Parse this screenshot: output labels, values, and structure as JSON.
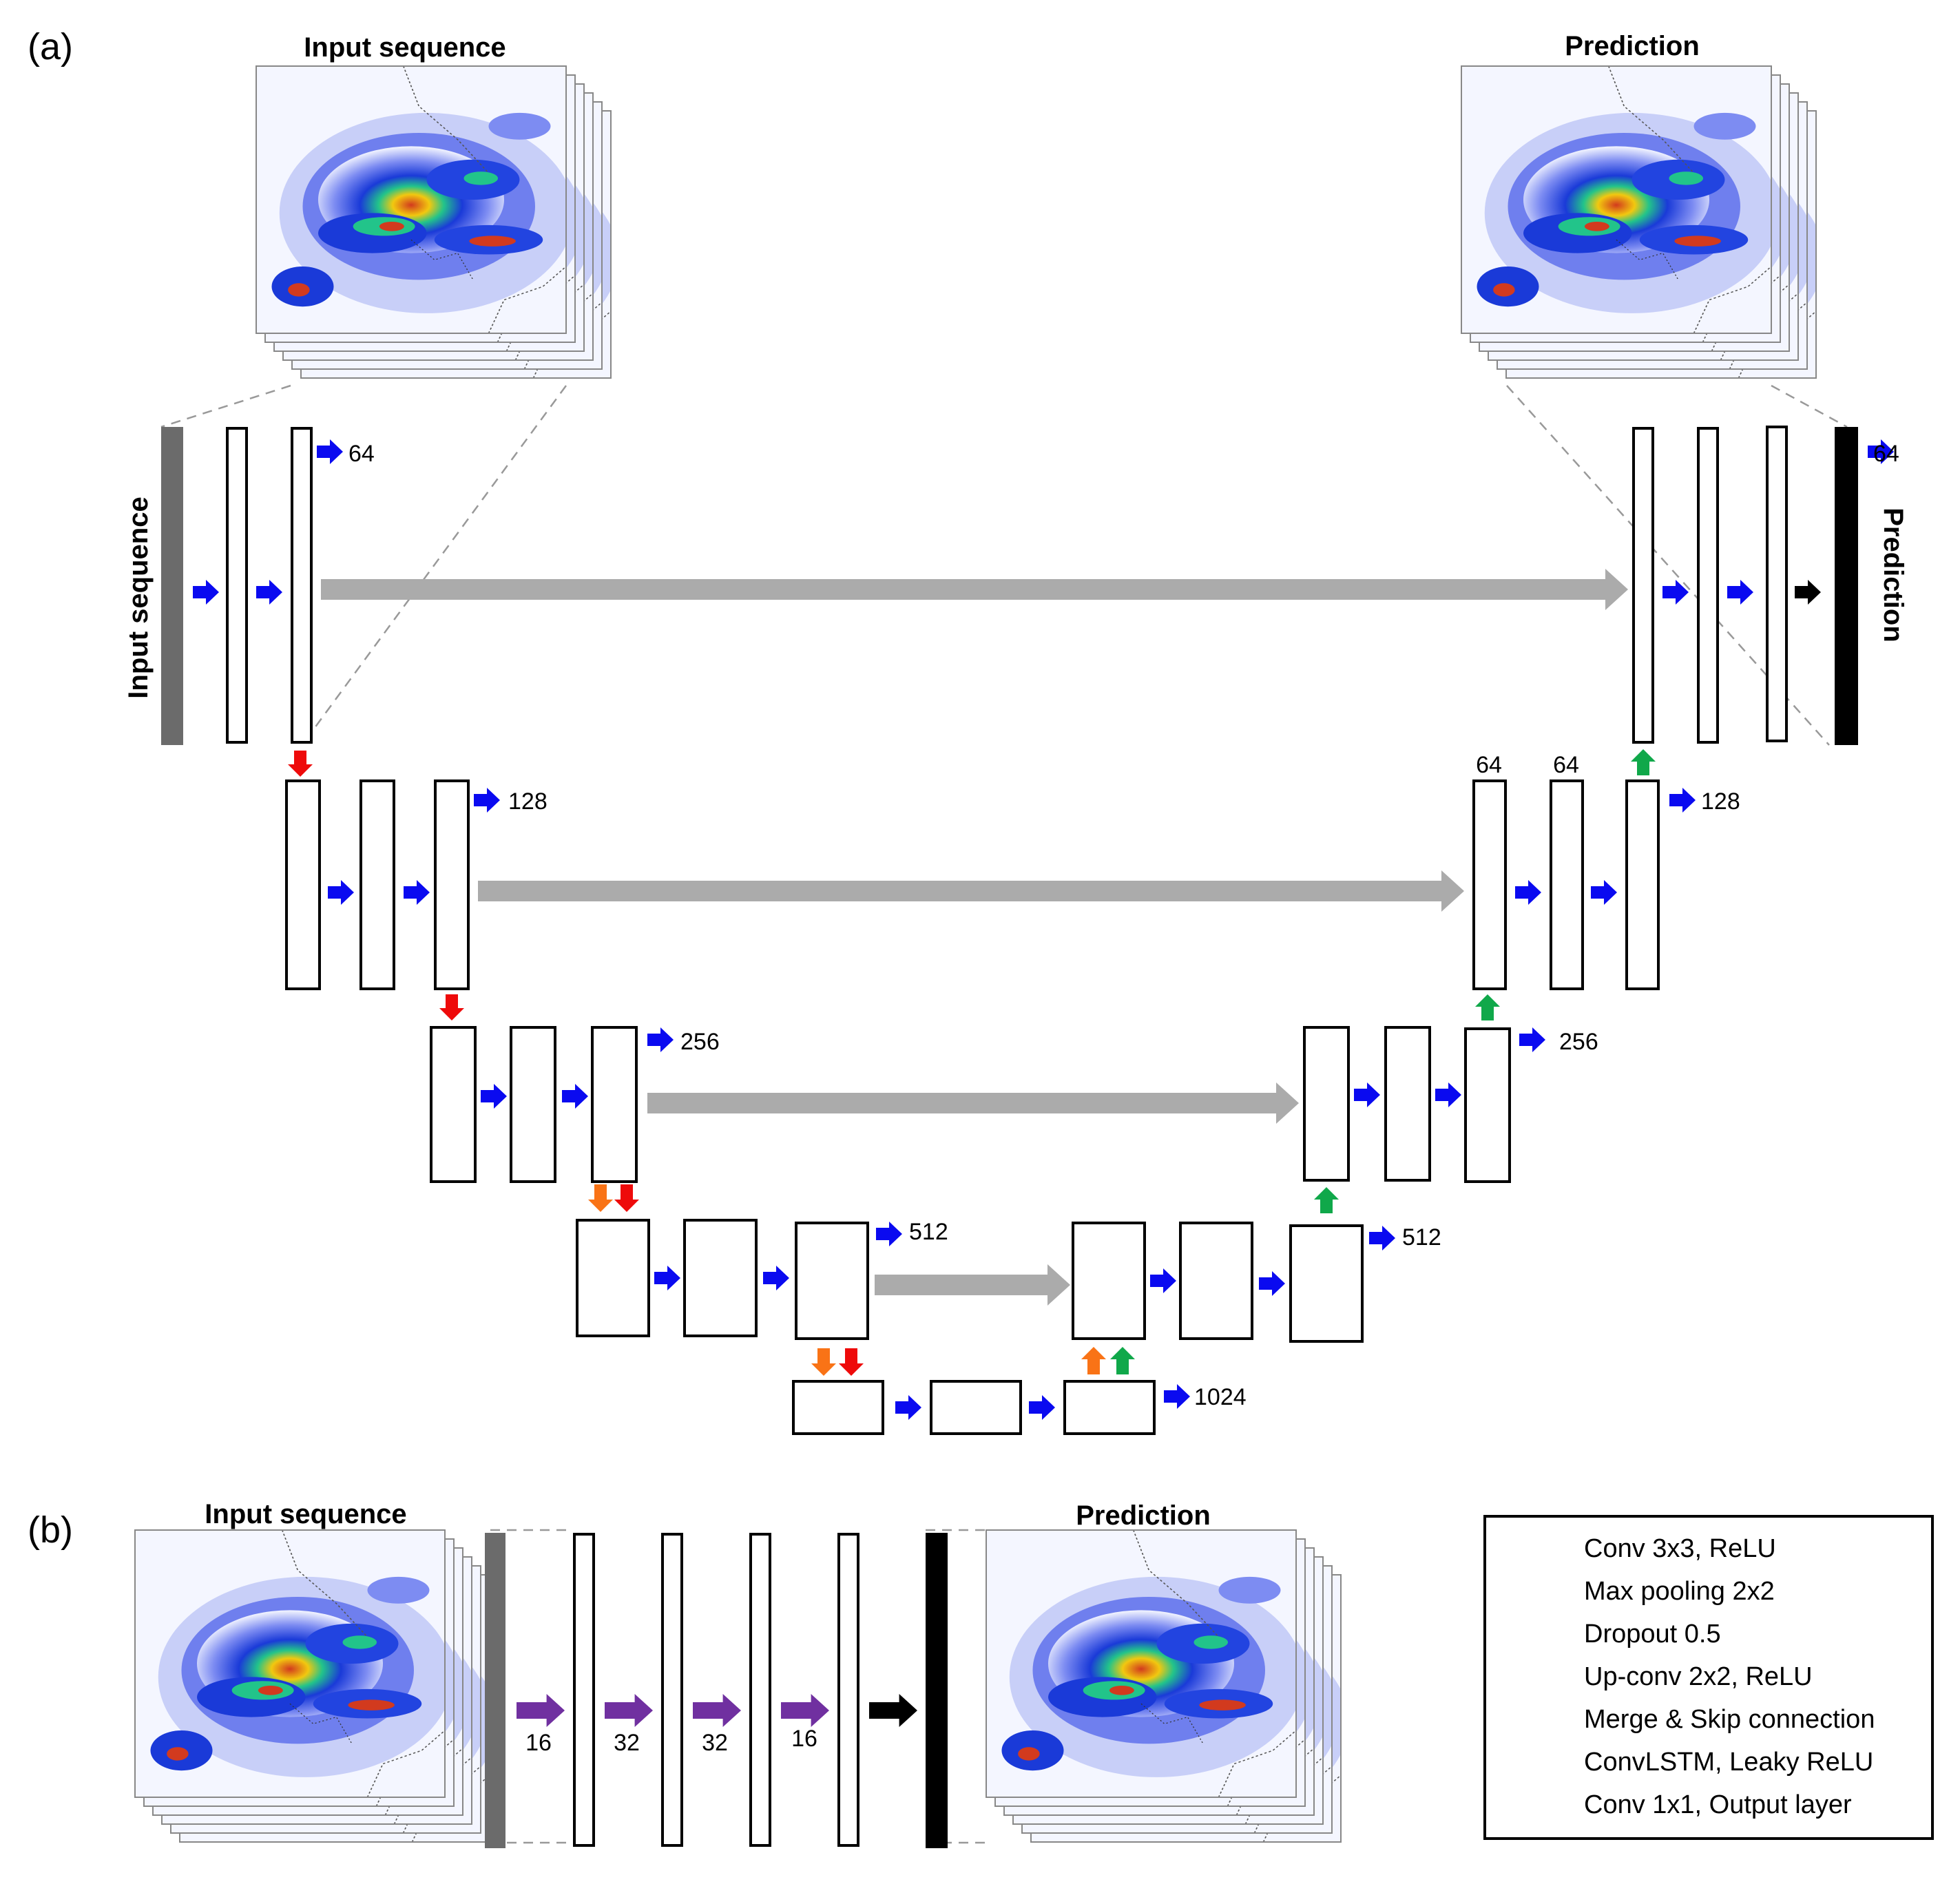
{
  "panels": {
    "a": "(a)",
    "b": "(b)"
  },
  "titles": {
    "a_input": "Input sequence",
    "a_prediction": "Prediction",
    "b_input": "Input sequence",
    "b_prediction": "Prediction"
  },
  "side_labels": {
    "input": "Input sequence",
    "prediction": "Prediction"
  },
  "channels": {
    "enc_64": "64",
    "enc_128": "128",
    "enc_256": "256",
    "enc_512": "512",
    "bottleneck_1024": "1024",
    "dec_512": "512",
    "dec_256": "256",
    "dec_128": "128",
    "dec_64": "64",
    "dec_top_64_a": "64",
    "dec_top_64_b": "64"
  },
  "convlstm_channels": [
    "16",
    "32",
    "32",
    "16"
  ],
  "legend": [
    {
      "label": "Conv 3x3, ReLU",
      "color": "#0a0af0"
    },
    {
      "label": "Max pooling 2x2",
      "color": "#ee0a0a"
    },
    {
      "label": "Dropout 0.5",
      "color": "#f97316"
    },
    {
      "label": "Up-conv 2x2, ReLU",
      "color": "#10a84a"
    },
    {
      "label": "Merge & Skip connection",
      "color": "#ababab"
    },
    {
      "label": "ConvLSTM, Leaky ReLU",
      "color": "#7030a0"
    },
    {
      "label": "Conv 1x1, Output layer",
      "color": "#000000"
    }
  ],
  "colors": {
    "conv": "#0a0af0",
    "pool": "#ee0a0a",
    "dropout": "#f97316",
    "upconv": "#10a84a",
    "skip": "#ababab",
    "convlstm": "#7030a0",
    "output": "#000000",
    "input_bar": "#6b6b6b",
    "prediction_bar": "#000000"
  }
}
